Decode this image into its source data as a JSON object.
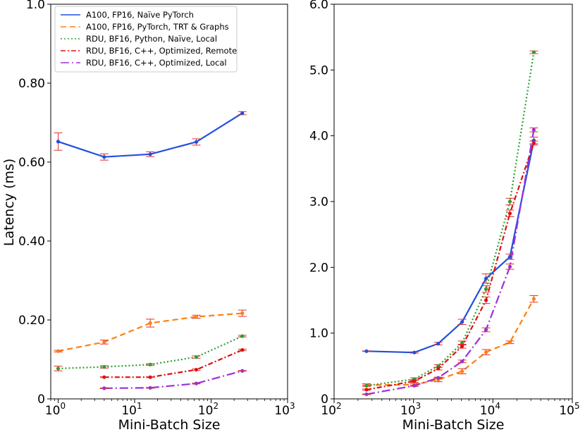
{
  "chart_data": [
    {
      "type": "line",
      "xscale": "log",
      "xlim": [
        0.8,
        1000
      ],
      "ylim": [
        0,
        1.0
      ],
      "xticks": [
        {
          "base": "10",
          "exp": "0"
        },
        {
          "base": "10",
          "exp": "1"
        },
        {
          "base": "10",
          "exp": "2"
        },
        {
          "base": "10",
          "exp": "3"
        }
      ],
      "yticks": [
        "0",
        "0.20",
        "0.40",
        "0.60",
        "0.80",
        "1.0"
      ],
      "xlabel": "Mini-Batch Size",
      "ylabel": "Latency (ms)",
      "legend_position": "top-left",
      "series": [
        {
          "name": "A100, FP16, Naïve PyTorch",
          "color": "#1f4fe0",
          "style": "solid",
          "x": [
            1,
            4,
            16,
            64,
            256
          ],
          "y": [
            0.652,
            0.613,
            0.62,
            0.651,
            0.724
          ],
          "err": [
            0.022,
            0.008,
            0.006,
            0.008,
            0.004
          ]
        },
        {
          "name": "A100, FP16, PyTorch, TRT & Graphs",
          "color": "#ff7f0e",
          "style": "dashed",
          "x": [
            1,
            4,
            16,
            64,
            256
          ],
          "y": [
            0.121,
            0.144,
            0.192,
            0.208,
            0.217
          ],
          "err": [
            0.002,
            0.005,
            0.01,
            0.004,
            0.008
          ]
        },
        {
          "name": "RDU, BF16, Python, Naïve, Local",
          "color": "#2ca02c",
          "style": "dotted",
          "x": [
            1,
            4,
            16,
            64,
            256
          ],
          "y": [
            0.077,
            0.081,
            0.087,
            0.106,
            0.159
          ],
          "err": [
            0.006,
            0.003,
            0.002,
            0.003,
            0.002
          ]
        },
        {
          "name": "RDU, BF16, C++, Optimized, Remote",
          "color": "#e00f0f",
          "style": "dashdot",
          "x": [
            4,
            16,
            64,
            256
          ],
          "y": [
            0.055,
            0.055,
            0.074,
            0.124
          ],
          "err": [
            0.001,
            0.001,
            0.002,
            0.002
          ]
        },
        {
          "name": "RDU, BF16, C++, Optimized, Local",
          "color": "#9b30d9",
          "style": "longdashdot",
          "x": [
            4,
            16,
            64,
            256
          ],
          "y": [
            0.027,
            0.028,
            0.039,
            0.071
          ],
          "err": [
            0.001,
            0.001,
            0.001,
            0.001
          ]
        }
      ]
    },
    {
      "type": "line",
      "xscale": "log",
      "xlim": [
        100,
        100000
      ],
      "ylim": [
        0,
        6.0
      ],
      "xticks": [
        {
          "base": "10",
          "exp": "2"
        },
        {
          "base": "10",
          "exp": "3"
        },
        {
          "base": "10",
          "exp": "4"
        },
        {
          "base": "10",
          "exp": "5"
        }
      ],
      "yticks": [
        "0",
        "1.0",
        "2.0",
        "3.0",
        "4.0",
        "5.0",
        "6.0"
      ],
      "xlabel": "Mini-Batch Size",
      "series": [
        {
          "name": "A100, FP16, Naïve PyTorch",
          "color": "#1f4fe0",
          "style": "solid",
          "x": [
            256,
            1024,
            2048,
            4096,
            8192,
            16384,
            32768
          ],
          "y": [
            0.725,
            0.705,
            0.84,
            1.17,
            1.83,
            2.16,
            3.93
          ],
          "err": [
            0.005,
            0.01,
            0.02,
            0.04,
            0.07,
            0.04,
            0.05
          ]
        },
        {
          "name": "A100, FP16, PyTorch, TRT & Graphs",
          "color": "#ff7f0e",
          "style": "dashed",
          "x": [
            256,
            1024,
            2048,
            4096,
            8192,
            16384,
            32768
          ],
          "y": [
            0.21,
            0.215,
            0.29,
            0.42,
            0.71,
            0.86,
            1.52
          ],
          "err": [
            0.02,
            0.02,
            0.03,
            0.04,
            0.04,
            0.02,
            0.05
          ]
        },
        {
          "name": "RDU, BF16, Python, Naïve, Local",
          "color": "#2ca02c",
          "style": "dotted",
          "x": [
            256,
            1024,
            2048,
            4096,
            8192,
            16384,
            32768
          ],
          "y": [
            0.2,
            0.3,
            0.5,
            0.85,
            1.67,
            3.0,
            5.27
          ],
          "err": [
            0.01,
            0.02,
            0.02,
            0.03,
            0.05,
            0.05,
            0.02
          ]
        },
        {
          "name": "RDU, BF16, C++, Optimized, Remote",
          "color": "#e00f0f",
          "style": "dashdot",
          "x": [
            256,
            1024,
            2048,
            4096,
            8192,
            16384,
            32768
          ],
          "y": [
            0.14,
            0.27,
            0.46,
            0.8,
            1.5,
            2.82,
            3.89
          ],
          "err": [
            0.01,
            0.02,
            0.02,
            0.03,
            0.05,
            0.05,
            0.03
          ]
        },
        {
          "name": "RDU, BF16, C++, Optimized, Local",
          "color": "#9b30d9",
          "style": "longdashdot",
          "x": [
            256,
            1024,
            2048,
            4096,
            8192,
            16384,
            32768
          ],
          "y": [
            0.07,
            0.2,
            0.32,
            0.57,
            1.05,
            2.01,
            4.09
          ],
          "err": [
            0.005,
            0.01,
            0.01,
            0.02,
            0.03,
            0.04,
            0.03
          ]
        }
      ]
    }
  ]
}
